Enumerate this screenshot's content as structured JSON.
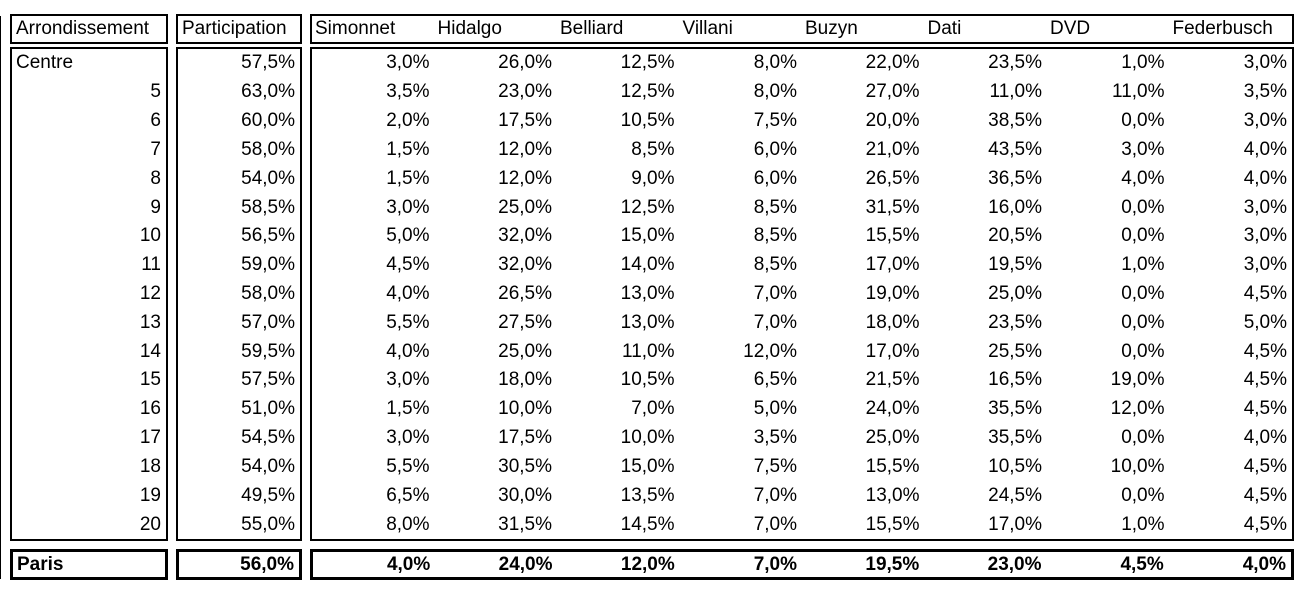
{
  "table": {
    "arrondissement_header": "Arrondissement",
    "participation_header": "Participation",
    "candidates": [
      "Simonnet",
      "Hidalgo",
      "Belliard",
      "Villani",
      "Buzyn",
      "Dati",
      "DVD",
      "Federbusch"
    ],
    "rows": [
      {
        "arrondissement": "Centre",
        "participation": "57,5%",
        "values": [
          "3,0%",
          "26,0%",
          "12,5%",
          "8,0%",
          "22,0%",
          "23,5%",
          "1,0%",
          "3,0%"
        ]
      },
      {
        "arrondissement": "5",
        "participation": "63,0%",
        "values": [
          "3,5%",
          "23,0%",
          "12,5%",
          "8,0%",
          "27,0%",
          "11,0%",
          "11,0%",
          "3,5%"
        ]
      },
      {
        "arrondissement": "6",
        "participation": "60,0%",
        "values": [
          "2,0%",
          "17,5%",
          "10,5%",
          "7,5%",
          "20,0%",
          "38,5%",
          "0,0%",
          "3,0%"
        ]
      },
      {
        "arrondissement": "7",
        "participation": "58,0%",
        "values": [
          "1,5%",
          "12,0%",
          "8,5%",
          "6,0%",
          "21,0%",
          "43,5%",
          "3,0%",
          "4,0%"
        ]
      },
      {
        "arrondissement": "8",
        "participation": "54,0%",
        "values": [
          "1,5%",
          "12,0%",
          "9,0%",
          "6,0%",
          "26,5%",
          "36,5%",
          "4,0%",
          "4,0%"
        ]
      },
      {
        "arrondissement": "9",
        "participation": "58,5%",
        "values": [
          "3,0%",
          "25,0%",
          "12,5%",
          "8,5%",
          "31,5%",
          "16,0%",
          "0,0%",
          "3,0%"
        ]
      },
      {
        "arrondissement": "10",
        "participation": "56,5%",
        "values": [
          "5,0%",
          "32,0%",
          "15,0%",
          "8,5%",
          "15,5%",
          "20,5%",
          "0,0%",
          "3,0%"
        ]
      },
      {
        "arrondissement": "11",
        "participation": "59,0%",
        "values": [
          "4,5%",
          "32,0%",
          "14,0%",
          "8,5%",
          "17,0%",
          "19,5%",
          "1,0%",
          "3,0%"
        ]
      },
      {
        "arrondissement": "12",
        "participation": "58,0%",
        "values": [
          "4,0%",
          "26,5%",
          "13,0%",
          "7,0%",
          "19,0%",
          "25,0%",
          "0,0%",
          "4,5%"
        ]
      },
      {
        "arrondissement": "13",
        "participation": "57,0%",
        "values": [
          "5,5%",
          "27,5%",
          "13,0%",
          "7,0%",
          "18,0%",
          "23,5%",
          "0,0%",
          "5,0%"
        ]
      },
      {
        "arrondissement": "14",
        "participation": "59,5%",
        "values": [
          "4,0%",
          "25,0%",
          "11,0%",
          "12,0%",
          "17,0%",
          "25,5%",
          "0,0%",
          "4,5%"
        ]
      },
      {
        "arrondissement": "15",
        "participation": "57,5%",
        "values": [
          "3,0%",
          "18,0%",
          "10,5%",
          "6,5%",
          "21,5%",
          "16,5%",
          "19,0%",
          "4,5%"
        ]
      },
      {
        "arrondissement": "16",
        "participation": "51,0%",
        "values": [
          "1,5%",
          "10,0%",
          "7,0%",
          "5,0%",
          "24,0%",
          "35,5%",
          "12,0%",
          "4,5%"
        ]
      },
      {
        "arrondissement": "17",
        "participation": "54,5%",
        "values": [
          "3,0%",
          "17,5%",
          "10,0%",
          "3,5%",
          "25,0%",
          "35,5%",
          "0,0%",
          "4,0%"
        ]
      },
      {
        "arrondissement": "18",
        "participation": "54,0%",
        "values": [
          "5,5%",
          "30,5%",
          "15,0%",
          "7,5%",
          "15,5%",
          "10,5%",
          "10,0%",
          "4,5%"
        ]
      },
      {
        "arrondissement": "19",
        "participation": "49,5%",
        "values": [
          "6,5%",
          "30,0%",
          "13,5%",
          "7,0%",
          "13,0%",
          "24,5%",
          "0,0%",
          "4,5%"
        ]
      },
      {
        "arrondissement": "20",
        "participation": "55,0%",
        "values": [
          "8,0%",
          "31,5%",
          "14,5%",
          "7,0%",
          "15,5%",
          "17,0%",
          "1,0%",
          "4,5%"
        ]
      }
    ],
    "total_row": {
      "arrondissement": "Paris",
      "participation": "56,0%",
      "values": [
        "4,0%",
        "24,0%",
        "12,0%",
        "7,0%",
        "19,5%",
        "23,0%",
        "4,5%",
        "4,0%"
      ]
    }
  }
}
